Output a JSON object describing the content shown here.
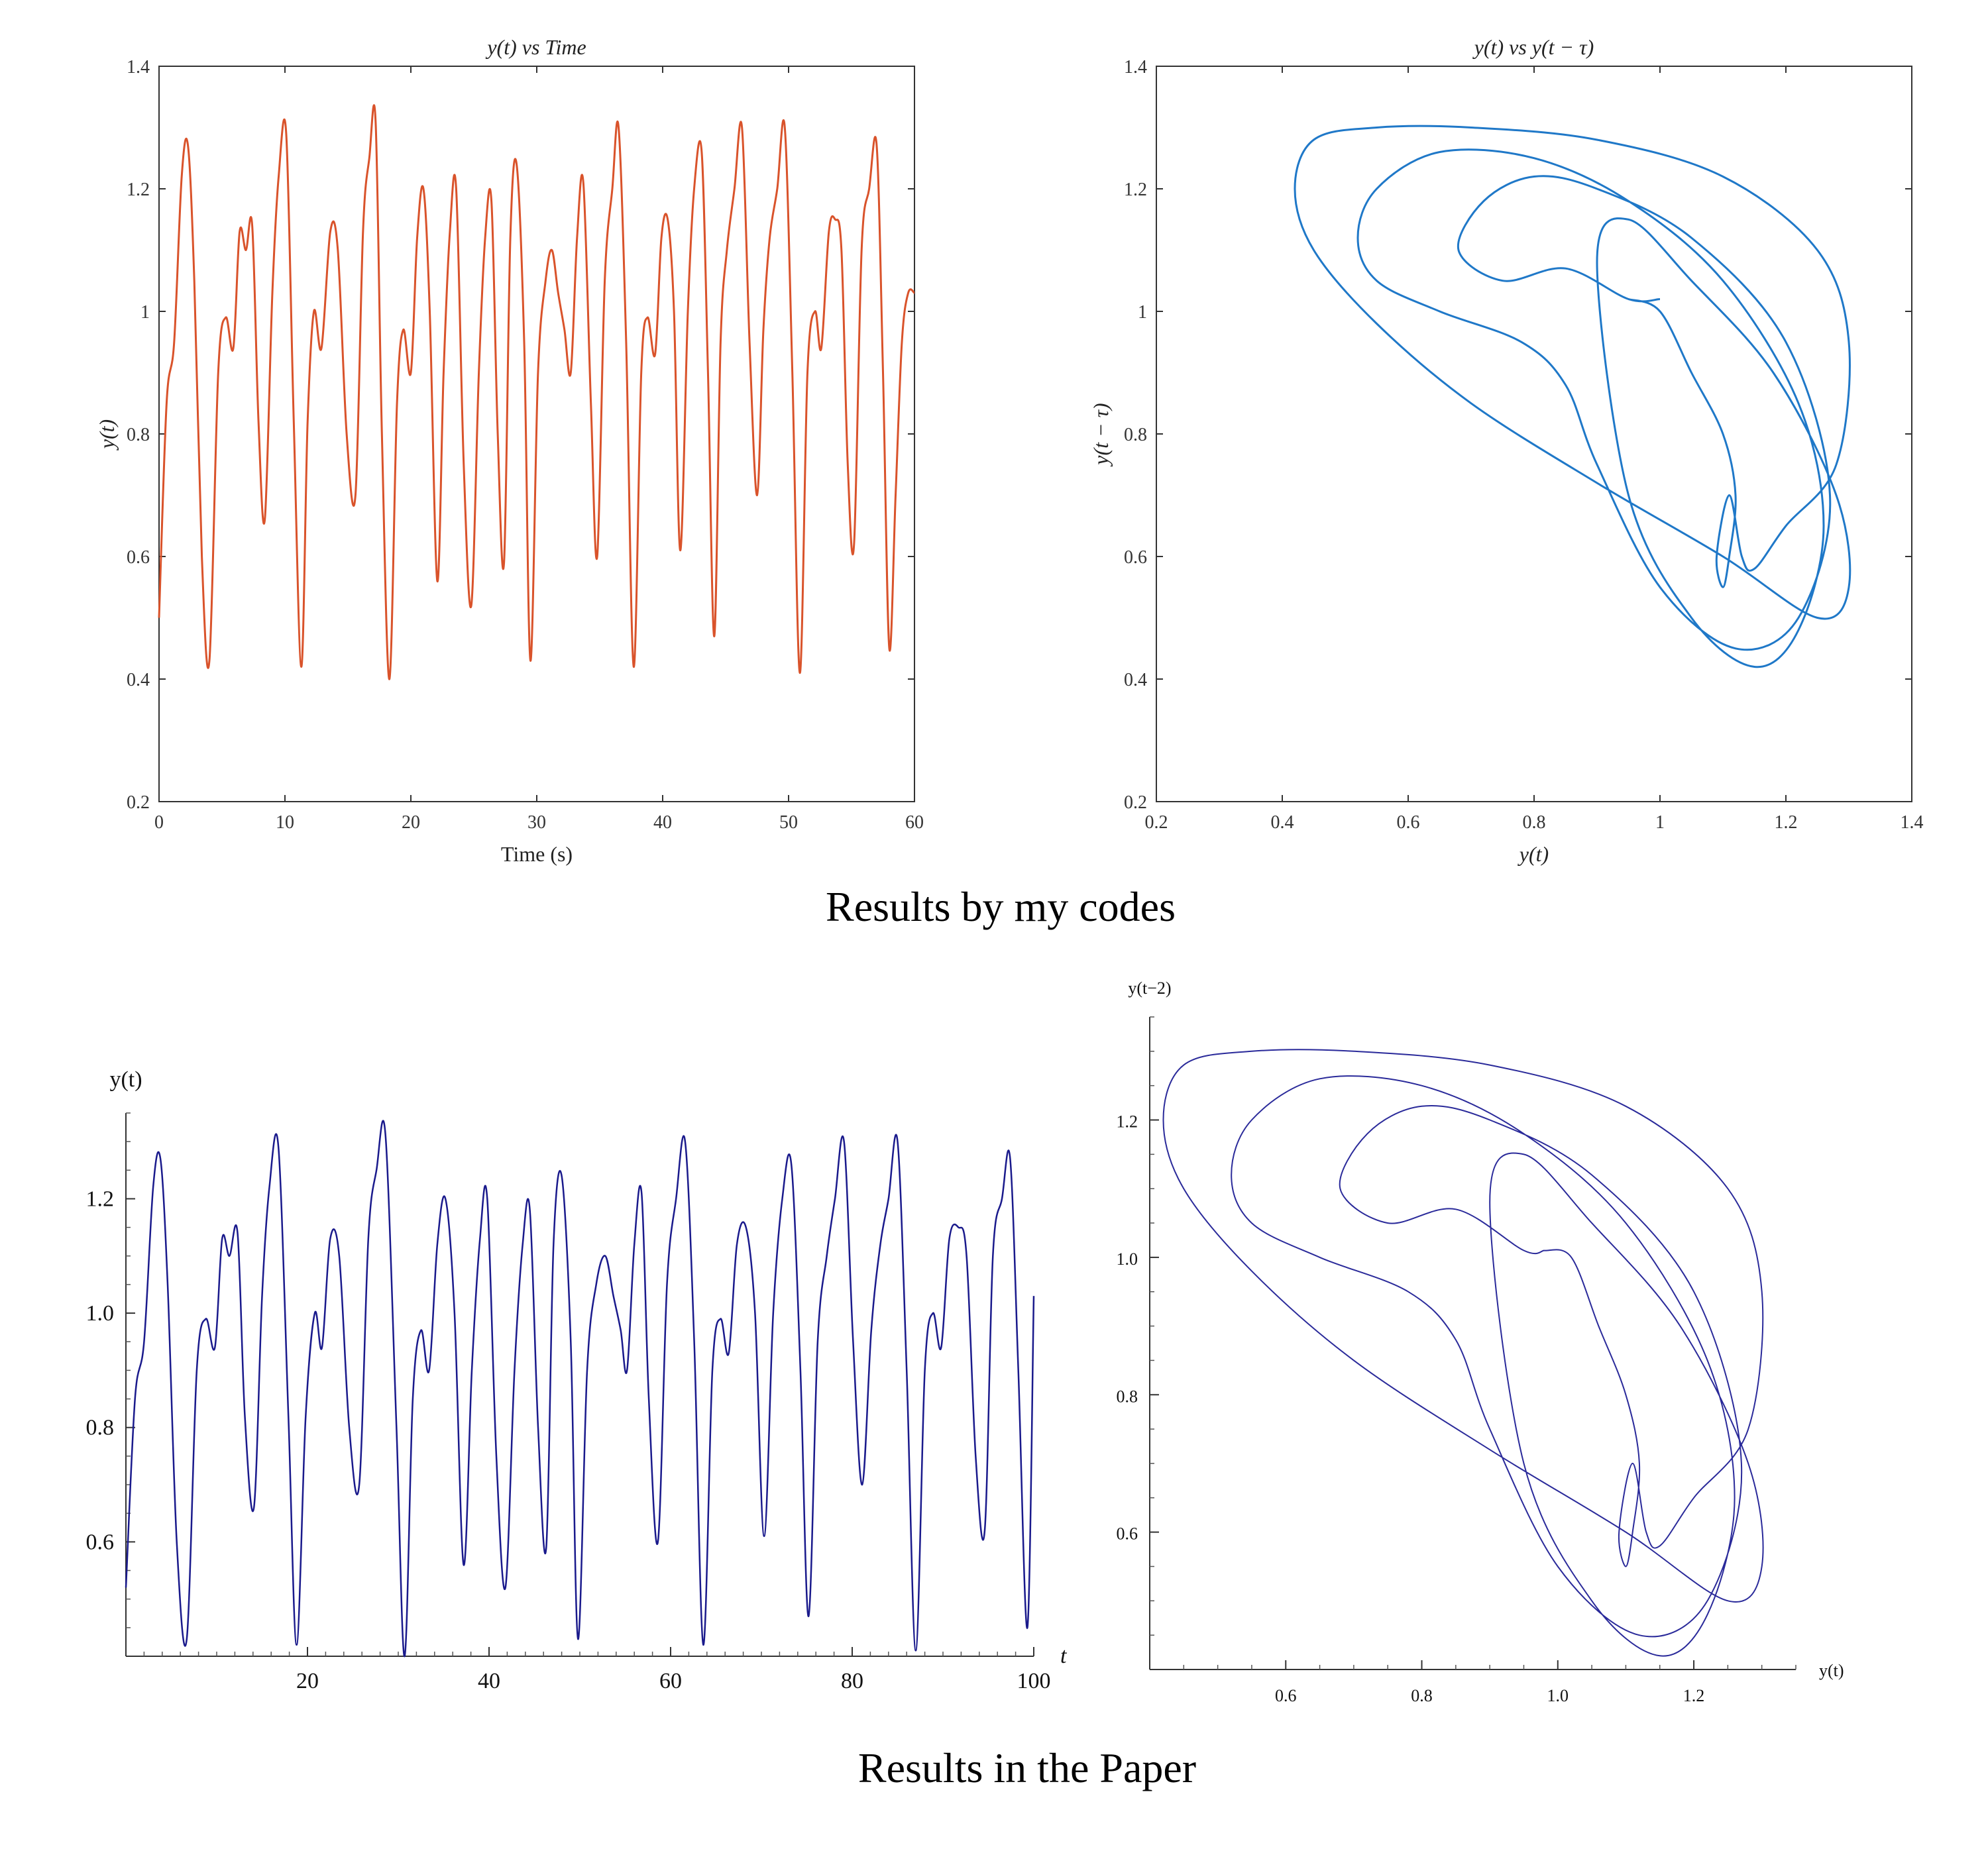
{
  "captions": {
    "top": "Results by my codes",
    "bottom": "Results in the Paper"
  },
  "chart_data": [
    {
      "id": "my-time",
      "type": "line",
      "title": "y(t) vs Time",
      "xlabel": "Time (s)",
      "ylabel": "y(t)",
      "xlim": [
        0,
        60
      ],
      "ylim": [
        0.2,
        1.4
      ],
      "xticks": [
        "0",
        "10",
        "20",
        "30",
        "40",
        "50",
        "60"
      ],
      "yticks": [
        "0.2",
        "0.4",
        "0.6",
        "0.8",
        "1",
        "1.2",
        "1.4"
      ],
      "color": "#d9532b",
      "grid": false,
      "series": [
        {
          "x": [
            0,
            0.6,
            1.2,
            1.8,
            2.3,
            2.8,
            3.4,
            4.0,
            4.7,
            5.3,
            5.9,
            6.4,
            6.9,
            7.4,
            7.9,
            8.4,
            9.0,
            9.5,
            10.1,
            10.7,
            11.3,
            11.8,
            12.3,
            12.9,
            13.6,
            14.2,
            14.9,
            15.6,
            16.2,
            16.7,
            17.2,
            17.7,
            18.3,
            18.9,
            19.4,
            20.0,
            20.5,
            21.0,
            21.5,
            22.1,
            22.6,
            23.1,
            23.6,
            24.2,
            24.8,
            25.4,
            25.9,
            26.4,
            26.9,
            27.4,
            27.9,
            28.4,
            29.0,
            29.5,
            30.1,
            30.7,
            31.2,
            31.7,
            32.2,
            32.7,
            33.2,
            33.7,
            34.3,
            34.8,
            35.4,
            36.0,
            36.5,
            37.1,
            37.7,
            38.3,
            38.8,
            39.4,
            39.9,
            40.4,
            40.9,
            41.4,
            42.0,
            42.5,
            43.1,
            43.6,
            44.1,
            44.6,
            45.1,
            45.7,
            46.3,
            46.9,
            47.5,
            48.0,
            48.5,
            49.1,
            49.7,
            50.3,
            50.9,
            51.5,
            52.1,
            52.6,
            53.2,
            53.7,
            54.2,
            54.7,
            55.2,
            55.8,
            56.4,
            57.0,
            57.5,
            58.0,
            58.5,
            59.0,
            59.5,
            60.0
          ],
          "y": [
            0.5,
            0.85,
            0.95,
            1.22,
            1.27,
            1.05,
            0.6,
            0.43,
            0.9,
            0.99,
            0.94,
            1.13,
            1.1,
            1.14,
            0.82,
            0.66,
            1.03,
            1.22,
            1.29,
            0.82,
            0.42,
            0.82,
            1.0,
            0.94,
            1.13,
            1.1,
            0.8,
            0.7,
            1.13,
            1.25,
            1.31,
            0.8,
            0.4,
            0.85,
            0.97,
            0.9,
            1.12,
            1.2,
            1.0,
            0.56,
            0.9,
            1.13,
            1.2,
            0.75,
            0.52,
            0.9,
            1.12,
            1.18,
            0.8,
            0.59,
            1.12,
            1.24,
            0.95,
            0.43,
            0.9,
            1.05,
            1.1,
            1.03,
            0.97,
            0.9,
            1.12,
            1.21,
            0.85,
            0.6,
            1.05,
            1.2,
            1.3,
            0.95,
            0.42,
            0.9,
            0.99,
            0.93,
            1.12,
            1.15,
            1.0,
            0.61,
            1.0,
            1.2,
            1.26,
            0.9,
            0.47,
            0.95,
            1.1,
            1.2,
            1.3,
            0.95,
            0.7,
            0.97,
            1.12,
            1.2,
            1.3,
            0.9,
            0.41,
            0.9,
            1.0,
            0.94,
            1.13,
            1.15,
            1.1,
            0.75,
            0.62,
            1.1,
            1.2,
            1.27,
            0.9,
            0.45,
            0.7,
            0.95,
            1.03,
            1.03
          ]
        }
      ]
    },
    {
      "id": "my-phase",
      "type": "line",
      "title": "y(t) vs y(t − τ)",
      "xlabel": "y(t)",
      "ylabel": "y(t − τ)",
      "xlim": [
        0.2,
        1.4
      ],
      "ylim": [
        0.2,
        1.4
      ],
      "xticks": [
        "0.2",
        "0.4",
        "0.6",
        "0.8",
        "1",
        "1.2",
        "1.4"
      ],
      "yticks": [
        "0.2",
        "0.4",
        "0.6",
        "0.8",
        "1",
        "1.2",
        "1.4"
      ],
      "color": "#1f78c8",
      "grid": false,
      "series": [
        {
          "x": [
            0.95,
            1.0,
            1.05,
            1.1,
            1.12,
            1.11,
            1.1,
            1.09,
            1.11,
            1.13,
            1.15,
            1.2,
            1.28,
            1.3,
            1.25,
            1.1,
            0.9,
            0.7,
            0.55,
            0.45,
            0.42,
            0.45,
            0.55,
            0.7,
            0.9,
            1.1,
            1.25,
            1.3,
            1.28,
            1.18,
            1.05,
            0.95,
            0.9,
            0.95,
            1.05,
            1.15,
            1.22,
            1.26,
            1.22,
            1.1,
            0.95,
            0.8,
            0.65,
            0.55,
            0.52,
            0.55,
            0.65,
            0.78,
            0.85,
            0.9,
            1.0,
            1.12,
            1.22,
            1.27,
            1.2,
            1.05,
            0.9,
            0.8,
            0.72,
            0.68,
            0.75,
            0.85,
            0.95,
            1.0
          ],
          "y": [
            1.02,
            1.0,
            0.9,
            0.8,
            0.7,
            0.6,
            0.55,
            0.6,
            0.7,
            0.6,
            0.58,
            0.65,
            0.75,
            0.95,
            1.1,
            1.22,
            1.28,
            1.3,
            1.3,
            1.28,
            1.2,
            1.1,
            0.98,
            0.85,
            0.72,
            0.6,
            0.5,
            0.55,
            0.7,
            0.9,
            1.05,
            1.15,
            1.08,
            0.7,
            0.5,
            0.42,
            0.48,
            0.65,
            0.85,
            1.05,
            1.18,
            1.25,
            1.26,
            1.2,
            1.12,
            1.05,
            1.0,
            0.95,
            0.88,
            0.75,
            0.55,
            0.45,
            0.5,
            0.7,
            0.95,
            1.12,
            1.2,
            1.22,
            1.18,
            1.1,
            1.05,
            1.07,
            1.02,
            1.02
          ]
        }
      ]
    },
    {
      "id": "paper-time",
      "type": "line",
      "title": "",
      "xlabel": "t",
      "ylabel": "y(t)",
      "xlim": [
        0,
        100
      ],
      "ylim": [
        0.4,
        1.35
      ],
      "xticks": [
        "20",
        "40",
        "60",
        "80",
        "100"
      ],
      "yticks": [
        "0.6",
        "0.8",
        "1.0",
        "1.2"
      ],
      "color": "#1a1a8c",
      "grid": false,
      "series": [
        {
          "x": [
            0,
            1.0,
            2.0,
            3.0,
            3.8,
            4.6,
            5.6,
            6.7,
            7.8,
            8.8,
            9.8,
            10.6,
            11.4,
            12.3,
            13.1,
            14.1,
            15.0,
            15.8,
            16.8,
            17.9,
            18.8,
            19.8,
            20.8,
            21.6,
            22.5,
            23.5,
            24.6,
            25.7,
            26.7,
            27.6,
            28.6,
            29.8,
            30.7,
            31.6,
            32.5,
            33.4,
            34.3,
            35.2,
            36.2,
            37.2,
            38.1,
            39.0,
            39.8,
            40.8,
            41.8,
            42.8,
            43.7,
            44.5,
            45.4,
            46.3,
            47.1,
            48.0,
            49.0,
            49.8,
            50.8,
            51.8,
            52.8,
            53.7,
            54.5,
            55.2,
            56.0,
            56.8,
            57.6,
            58.6,
            59.6,
            60.6,
            61.6,
            62.6,
            63.6,
            64.6,
            65.5,
            66.4,
            67.3,
            68.3,
            69.3,
            70.3,
            71.3,
            72.3,
            73.3,
            74.3,
            75.2,
            76.2,
            77.2,
            78.1,
            79.1,
            80.1,
            81.1,
            82.1,
            83.1,
            84.0,
            85.0,
            86.0,
            87.0,
            88.0,
            88.9,
            89.8,
            90.7,
            91.7,
            92.6,
            93.6,
            94.6,
            95.5,
            96.5,
            97.4,
            98.3,
            99.3,
            100.0
          ],
          "y": [
            0.52,
            0.85,
            0.95,
            1.22,
            1.27,
            1.05,
            0.6,
            0.43,
            0.9,
            0.99,
            0.94,
            1.13,
            1.1,
            1.14,
            0.82,
            0.66,
            1.03,
            1.22,
            1.29,
            0.82,
            0.42,
            0.82,
            1.0,
            0.94,
            1.13,
            1.1,
            0.8,
            0.7,
            1.13,
            1.25,
            1.31,
            0.8,
            0.4,
            0.85,
            0.97,
            0.9,
            1.12,
            1.2,
            1.0,
            0.56,
            0.9,
            1.13,
            1.2,
            0.75,
            0.52,
            0.9,
            1.12,
            1.18,
            0.8,
            0.59,
            1.12,
            1.24,
            0.95,
            0.43,
            0.9,
            1.05,
            1.1,
            1.03,
            0.97,
            0.9,
            1.12,
            1.21,
            0.85,
            0.6,
            1.05,
            1.2,
            1.3,
            0.95,
            0.42,
            0.9,
            0.99,
            0.93,
            1.12,
            1.15,
            1.0,
            0.61,
            1.0,
            1.2,
            1.26,
            0.9,
            0.47,
            0.95,
            1.1,
            1.2,
            1.3,
            0.95,
            0.7,
            0.97,
            1.12,
            1.2,
            1.3,
            0.9,
            0.41,
            0.9,
            1.0,
            0.94,
            1.13,
            1.15,
            1.1,
            0.75,
            0.62,
            1.1,
            1.2,
            1.27,
            0.9,
            0.45,
            1.03
          ]
        }
      ]
    },
    {
      "id": "paper-phase",
      "type": "line",
      "title": "",
      "xlabel": "y(t)",
      "ylabel": "y(t−2)",
      "xlim": [
        0.4,
        1.35
      ],
      "ylim": [
        0.4,
        1.35
      ],
      "xticks": [
        "0.6",
        "0.8",
        "1.0",
        "1.2"
      ],
      "yticks": [
        "0.6",
        "0.8",
        "1.0",
        "1.2"
      ],
      "color": "#2a2a9a",
      "grid": false,
      "series": [
        {
          "x": [
            0.98,
            1.02,
            1.06,
            1.1,
            1.12,
            1.11,
            1.1,
            1.09,
            1.11,
            1.13,
            1.15,
            1.2,
            1.28,
            1.3,
            1.25,
            1.1,
            0.9,
            0.7,
            0.55,
            0.45,
            0.42,
            0.45,
            0.55,
            0.7,
            0.9,
            1.1,
            1.25,
            1.3,
            1.28,
            1.18,
            1.05,
            0.95,
            0.9,
            0.95,
            1.05,
            1.15,
            1.22,
            1.26,
            1.22,
            1.1,
            0.95,
            0.8,
            0.65,
            0.55,
            0.52,
            0.55,
            0.65,
            0.78,
            0.85,
            0.9,
            1.0,
            1.12,
            1.22,
            1.27,
            1.2,
            1.05,
            0.9,
            0.8,
            0.72,
            0.68,
            0.75,
            0.85,
            0.95,
            0.98
          ],
          "y": [
            1.01,
            1.0,
            0.9,
            0.8,
            0.7,
            0.6,
            0.55,
            0.6,
            0.7,
            0.6,
            0.58,
            0.65,
            0.75,
            0.95,
            1.1,
            1.22,
            1.28,
            1.3,
            1.3,
            1.28,
            1.2,
            1.1,
            0.98,
            0.85,
            0.72,
            0.6,
            0.5,
            0.55,
            0.7,
            0.9,
            1.05,
            1.15,
            1.08,
            0.7,
            0.5,
            0.42,
            0.48,
            0.65,
            0.85,
            1.05,
            1.18,
            1.25,
            1.26,
            1.2,
            1.12,
            1.05,
            1.0,
            0.95,
            0.88,
            0.75,
            0.55,
            0.45,
            0.5,
            0.7,
            0.95,
            1.12,
            1.2,
            1.22,
            1.18,
            1.1,
            1.05,
            1.07,
            1.01,
            1.01
          ]
        }
      ]
    }
  ]
}
